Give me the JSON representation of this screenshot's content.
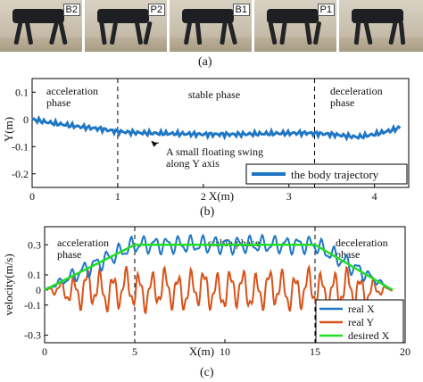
{
  "photos": [
    {
      "tag": "B2"
    },
    {
      "tag": "P2"
    },
    {
      "tag": "B1"
    },
    {
      "tag": "P1"
    },
    {
      "tag": ""
    }
  ],
  "captions": {
    "a": "(a)",
    "b": "(b)",
    "c": "(c)"
  },
  "colors": {
    "trajectory": "#1f77c4",
    "real_x": "#1f77c4",
    "real_y": "#d95319",
    "desired_x": "#22dd22"
  },
  "chart_data": [
    {
      "type": "line",
      "title": "",
      "xlabel": "X(m)",
      "ylabel": "Y(m)",
      "xlim": [
        0,
        4.4
      ],
      "ylim": [
        -0.25,
        0.15
      ],
      "xticks": [
        0,
        1,
        2,
        3,
        4
      ],
      "yticks": [
        0.1,
        0,
        -0.1,
        -0.2
      ],
      "ytick_labels": [
        "0.1",
        "0",
        "-0.1",
        "-0.2"
      ],
      "phase_lines_x": [
        1,
        3.3
      ],
      "phase_labels": [
        {
          "text": "acceleration\nphase"
        },
        {
          "text": "stable phase"
        },
        {
          "text": "deceleration\nphase"
        }
      ],
      "annotation": {
        "text": "A small floating swing\nalong Y axis",
        "x": 1.38,
        "y": -0.075
      },
      "legend": {
        "placement": "bottom-right",
        "label": "the body trajectory"
      },
      "series": [
        {
          "name": "the body trajectory",
          "x": [
            0,
            0.2,
            0.5,
            0.8,
            1.0,
            1.3,
            1.6,
            2.0,
            2.4,
            2.8,
            3.2,
            3.5,
            3.8,
            4.0,
            4.2,
            4.3
          ],
          "y": [
            0.0,
            -0.012,
            -0.025,
            -0.035,
            -0.045,
            -0.05,
            -0.052,
            -0.055,
            -0.055,
            -0.052,
            -0.05,
            -0.055,
            -0.065,
            -0.055,
            -0.04,
            -0.03
          ]
        }
      ]
    },
    {
      "type": "line",
      "title": "",
      "xlabel": "X(m)",
      "ylabel": "velocity(m/s)",
      "xlim": [
        0,
        20
      ],
      "ylim": [
        -0.35,
        0.42
      ],
      "xticks": [
        0,
        5,
        10,
        15,
        20
      ],
      "yticks": [
        0.3,
        0.1,
        0,
        -0.1,
        -0.3
      ],
      "ytick_labels": [
        "0.3",
        "0.1",
        "0",
        "-0.1",
        "-0.3"
      ],
      "phase_lines_x": [
        5,
        15
      ],
      "phase_labels": [
        {
          "text": "acceleration\nphase"
        },
        {
          "text": "stable phase"
        },
        {
          "text": "deceleration\nphase"
        }
      ],
      "legend": {
        "placement": "bottom-right",
        "labels": [
          "real X",
          "real Y",
          "desired X"
        ]
      },
      "series": [
        {
          "name": "real X",
          "note": "oscillates around desired X, amplitude ~0.05 m/s in stable phase"
        },
        {
          "name": "real Y",
          "note": "oscillates around 0, amplitude ~0.12 m/s"
        },
        {
          "name": "desired X",
          "x": [
            0,
            5,
            15,
            19.3
          ],
          "y": [
            0.0,
            0.3,
            0.3,
            0.0
          ]
        }
      ]
    }
  ]
}
